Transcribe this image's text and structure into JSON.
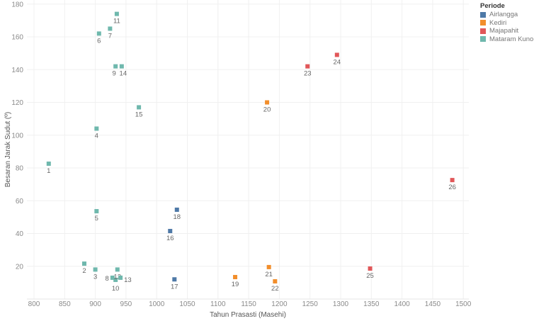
{
  "chart_data": {
    "type": "scatter",
    "xlabel": "Tahun Prasasti (Masehi)",
    "ylabel": "Besaran Jarak Sudut (º)",
    "xlim": [
      790,
      1520
    ],
    "ylim": [
      0,
      180
    ],
    "xticks": [
      800,
      850,
      900,
      950,
      1000,
      1050,
      1100,
      1150,
      1200,
      1250,
      1300,
      1350,
      1400,
      1450,
      1500
    ],
    "yticks": [
      20,
      40,
      60,
      80,
      100,
      120,
      140,
      160,
      180
    ],
    "grid": true,
    "legend": {
      "title": "Periode",
      "placement": "top-right",
      "entries": [
        {
          "name": "Airlangga",
          "color": "#4e79a7"
        },
        {
          "name": "Kediri",
          "color": "#f28e2b"
        },
        {
          "name": "Majapahit",
          "color": "#e15759"
        },
        {
          "name": "Mataram Kuno",
          "color": "#6fb8ad"
        }
      ]
    },
    "points": [
      {
        "label": "1",
        "x": 824,
        "y": 82.6,
        "periode": "Mataram Kuno"
      },
      {
        "label": "2",
        "x": 882,
        "y": 21.6,
        "periode": "Mataram Kuno"
      },
      {
        "label": "3",
        "x": 900,
        "y": 18,
        "periode": "Mataram Kuno"
      },
      {
        "label": "4",
        "x": 902,
        "y": 104,
        "periode": "Mataram Kuno"
      },
      {
        "label": "5",
        "x": 902,
        "y": 53.6,
        "periode": "Mataram Kuno"
      },
      {
        "label": "6",
        "x": 906,
        "y": 162,
        "periode": "Mataram Kuno"
      },
      {
        "label": "7",
        "x": 924,
        "y": 165,
        "periode": "Mataram Kuno"
      },
      {
        "label": "8",
        "x": 928,
        "y": 13,
        "periode": "Mataram Kuno"
      },
      {
        "label": "9",
        "x": 933,
        "y": 142,
        "periode": "Mataram Kuno"
      },
      {
        "label": "10",
        "x": 933,
        "y": 11.7,
        "periode": "Mataram Kuno"
      },
      {
        "label": "11",
        "x": 935,
        "y": 174,
        "periode": "Mataram Kuno"
      },
      {
        "label": "12",
        "x": 936,
        "y": 18,
        "periode": "Mataram Kuno"
      },
      {
        "label": "13",
        "x": 941,
        "y": 13,
        "periode": "Mataram Kuno"
      },
      {
        "label": "14",
        "x": 943,
        "y": 142,
        "periode": "Mataram Kuno"
      },
      {
        "label": "15",
        "x": 971,
        "y": 117,
        "periode": "Mataram Kuno"
      },
      {
        "label": "16",
        "x": 1022,
        "y": 41.5,
        "periode": "Airlangga"
      },
      {
        "label": "17",
        "x": 1029,
        "y": 12,
        "periode": "Airlangga"
      },
      {
        "label": "18",
        "x": 1033,
        "y": 54.5,
        "periode": "Airlangga"
      },
      {
        "label": "19",
        "x": 1128,
        "y": 13.4,
        "periode": "Kediri"
      },
      {
        "label": "20",
        "x": 1180,
        "y": 120,
        "periode": "Kediri"
      },
      {
        "label": "21",
        "x": 1183,
        "y": 19.5,
        "periode": "Kediri"
      },
      {
        "label": "22",
        "x": 1193,
        "y": 10.8,
        "periode": "Kediri"
      },
      {
        "label": "23",
        "x": 1246,
        "y": 142,
        "periode": "Majapahit"
      },
      {
        "label": "24",
        "x": 1294,
        "y": 149,
        "periode": "Majapahit"
      },
      {
        "label": "25",
        "x": 1348,
        "y": 18.6,
        "periode": "Majapahit"
      },
      {
        "label": "26",
        "x": 1482,
        "y": 72.6,
        "periode": "Majapahit"
      }
    ]
  }
}
